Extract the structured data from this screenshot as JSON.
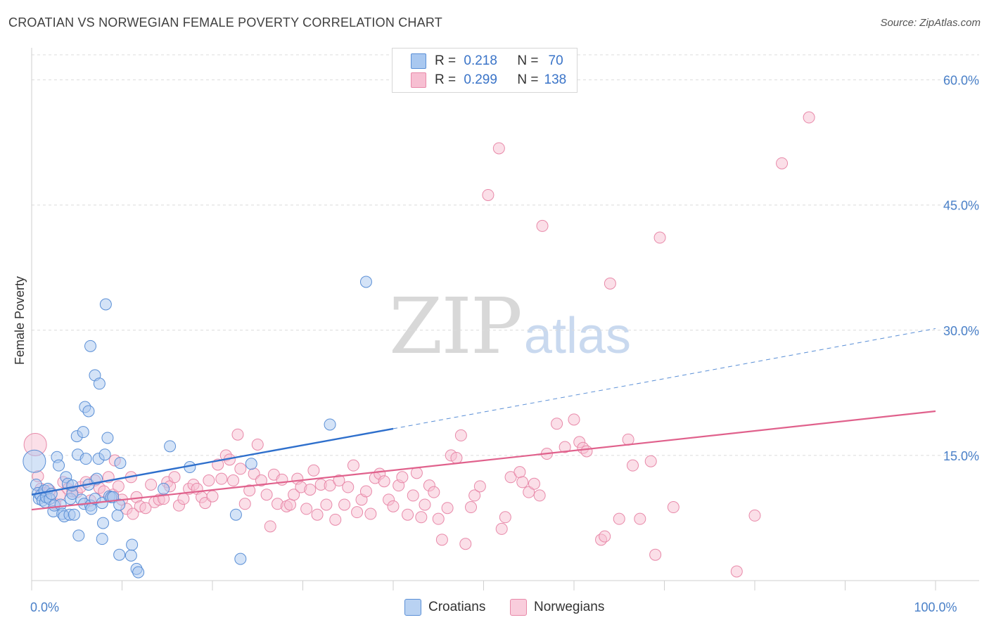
{
  "title": "CROATIAN VS NORWEGIAN FEMALE POVERTY CORRELATION CHART",
  "source": "Source: ZipAtlas.com",
  "watermark": {
    "zip": "ZIP",
    "atlas": "atlas"
  },
  "legend": {
    "rows": [
      {
        "r_label": "R =",
        "r_value": "0.218",
        "n_label": "N =",
        "n_value": "70"
      },
      {
        "r_label": "R =",
        "r_value": "0.299",
        "n_label": "N =",
        "n_value": "138"
      }
    ]
  },
  "bottom_legend": {
    "croatians": "Croatians",
    "norwegians": "Norwegians"
  },
  "colors": {
    "blue_fill": "#a9c8f0",
    "blue_stroke": "#5a8fd6",
    "blue_line": "#2e6fcc",
    "pink_fill": "#f7bfd2",
    "pink_stroke": "#e889a9",
    "pink_line": "#e0618c",
    "grid": "#dcdcdc",
    "tick_label": "#4a80c8"
  },
  "chart_data": {
    "type": "scatter",
    "title": "CROATIAN VS NORWEGIAN FEMALE POVERTY CORRELATION CHART",
    "xlabel": "",
    "ylabel": "Female Poverty",
    "xlim": [
      0,
      100
    ],
    "ylim": [
      0,
      63
    ],
    "x_ticks": [
      {
        "value": 0,
        "label": "0.0%"
      },
      {
        "value": 100,
        "label": "100.0%"
      }
    ],
    "y_ticks": [
      {
        "value": 15,
        "label": "15.0%"
      },
      {
        "value": 30,
        "label": "30.0%"
      },
      {
        "value": 45,
        "label": "45.0%"
      },
      {
        "value": 60,
        "label": "60.0%"
      }
    ],
    "series": [
      {
        "name": "Croatians",
        "r": 0.218,
        "n": 70,
        "trend": {
          "x0": 0,
          "y0": 10.3,
          "x1": 40,
          "y1": 18.2,
          "dashed_to_x": 100,
          "dashed_to_y": 30.2
        },
        "points": [
          [
            0.3,
            14.3
          ],
          [
            0.5,
            11.5
          ],
          [
            0.7,
            10.5
          ],
          [
            0.8,
            9.8
          ],
          [
            1.0,
            10.2
          ],
          [
            1.2,
            9.6
          ],
          [
            1.4,
            10.8
          ],
          [
            1.5,
            9.4
          ],
          [
            1.6,
            10.0
          ],
          [
            1.8,
            11.0
          ],
          [
            2.0,
            9.8
          ],
          [
            2.2,
            10.4
          ],
          [
            2.4,
            8.3
          ],
          [
            2.5,
            9.0
          ],
          [
            2.8,
            14.8
          ],
          [
            3.0,
            13.8
          ],
          [
            3.2,
            9.1
          ],
          [
            3.4,
            8.0
          ],
          [
            3.6,
            7.7
          ],
          [
            3.8,
            12.4
          ],
          [
            4.0,
            11.6
          ],
          [
            4.2,
            7.9
          ],
          [
            4.3,
            9.8
          ],
          [
            4.5,
            10.4
          ],
          [
            4.7,
            7.9
          ],
          [
            4.5,
            11.4
          ],
          [
            5.0,
            17.3
          ],
          [
            5.1,
            15.1
          ],
          [
            5.2,
            5.4
          ],
          [
            5.5,
            9.7
          ],
          [
            5.7,
            17.8
          ],
          [
            5.8,
            9.2
          ],
          [
            6.0,
            14.6
          ],
          [
            6.3,
            11.5
          ],
          [
            6.5,
            9.0
          ],
          [
            6.6,
            8.6
          ],
          [
            5.9,
            20.8
          ],
          [
            6.3,
            20.3
          ],
          [
            6.5,
            28.1
          ],
          [
            7.0,
            24.6
          ],
          [
            7.0,
            9.8
          ],
          [
            7.2,
            12.2
          ],
          [
            7.4,
            14.6
          ],
          [
            7.5,
            23.6
          ],
          [
            7.8,
            9.3
          ],
          [
            7.9,
            6.9
          ],
          [
            7.8,
            5.0
          ],
          [
            8.1,
            15.1
          ],
          [
            8.2,
            33.1
          ],
          [
            8.4,
            17.1
          ],
          [
            8.6,
            10.1
          ],
          [
            8.8,
            10.0
          ],
          [
            9.0,
            10.0
          ],
          [
            9.5,
            7.8
          ],
          [
            9.7,
            9.1
          ],
          [
            9.7,
            3.1
          ],
          [
            9.8,
            14.1
          ],
          [
            11.1,
            4.3
          ],
          [
            11.0,
            3.0
          ],
          [
            11.6,
            1.4
          ],
          [
            11.8,
            1.0
          ],
          [
            14.6,
            11.0
          ],
          [
            15.3,
            16.1
          ],
          [
            17.5,
            13.6
          ],
          [
            22.6,
            7.9
          ],
          [
            23.1,
            2.6
          ],
          [
            24.3,
            14.0
          ],
          [
            33.0,
            18.7
          ],
          [
            37.0,
            35.8
          ]
        ]
      },
      {
        "name": "Norwegians",
        "r": 0.299,
        "n": 138,
        "trend": {
          "x0": 0,
          "y0": 8.5,
          "x1": 100,
          "y1": 20.3
        },
        "points": [
          [
            0.4,
            16.3
          ],
          [
            0.7,
            12.5
          ],
          [
            1.0,
            11.0
          ],
          [
            1.5,
            10.5
          ],
          [
            2.0,
            10.8
          ],
          [
            2.6,
            9.2
          ],
          [
            3.1,
            10.2
          ],
          [
            3.5,
            11.8
          ],
          [
            4.0,
            11.0
          ],
          [
            4.5,
            10.7
          ],
          [
            5.0,
            10.6
          ],
          [
            5.4,
            11.2
          ],
          [
            6.0,
            11.8
          ],
          [
            6.5,
            9.6
          ],
          [
            7.0,
            12.0
          ],
          [
            7.5,
            11.1
          ],
          [
            8.0,
            10.7
          ],
          [
            8.5,
            12.4
          ],
          [
            9.0,
            10.3
          ],
          [
            9.2,
            14.4
          ],
          [
            9.6,
            11.3
          ],
          [
            10.0,
            9.7
          ],
          [
            10.5,
            8.6
          ],
          [
            11.0,
            12.4
          ],
          [
            11.2,
            8.0
          ],
          [
            11.6,
            10.0
          ],
          [
            12.0,
            8.9
          ],
          [
            12.6,
            8.7
          ],
          [
            13.2,
            11.5
          ],
          [
            13.6,
            9.4
          ],
          [
            14.1,
            9.7
          ],
          [
            14.6,
            9.8
          ],
          [
            15.0,
            11.8
          ],
          [
            15.3,
            11.3
          ],
          [
            15.8,
            12.4
          ],
          [
            16.3,
            9.0
          ],
          [
            16.8,
            9.8
          ],
          [
            17.4,
            11.0
          ],
          [
            17.9,
            11.5
          ],
          [
            18.3,
            11.0
          ],
          [
            18.8,
            10.0
          ],
          [
            19.2,
            9.3
          ],
          [
            19.6,
            12.0
          ],
          [
            20.0,
            10.1
          ],
          [
            20.6,
            13.9
          ],
          [
            21.0,
            12.2
          ],
          [
            21.5,
            15.0
          ],
          [
            21.9,
            14.5
          ],
          [
            22.3,
            12.0
          ],
          [
            22.8,
            17.5
          ],
          [
            23.1,
            13.4
          ],
          [
            23.6,
            9.2
          ],
          [
            24.1,
            10.8
          ],
          [
            24.6,
            12.8
          ],
          [
            25.0,
            16.3
          ],
          [
            25.4,
            12.0
          ],
          [
            26.0,
            10.3
          ],
          [
            26.4,
            6.5
          ],
          [
            26.8,
            12.7
          ],
          [
            27.2,
            9.2
          ],
          [
            27.7,
            12.1
          ],
          [
            28.2,
            8.9
          ],
          [
            28.6,
            9.1
          ],
          [
            29.0,
            10.3
          ],
          [
            29.4,
            12.2
          ],
          [
            29.8,
            11.2
          ],
          [
            30.4,
            8.6
          ],
          [
            30.8,
            10.9
          ],
          [
            31.2,
            13.2
          ],
          [
            31.6,
            7.9
          ],
          [
            32.0,
            11.5
          ],
          [
            32.6,
            9.1
          ],
          [
            33.0,
            11.4
          ],
          [
            33.6,
            7.3
          ],
          [
            34.0,
            12.0
          ],
          [
            34.6,
            9.1
          ],
          [
            35.0,
            11.2
          ],
          [
            35.6,
            13.8
          ],
          [
            36.0,
            8.2
          ],
          [
            36.5,
            9.7
          ],
          [
            37.0,
            10.7
          ],
          [
            37.5,
            8.0
          ],
          [
            38.0,
            12.3
          ],
          [
            38.5,
            12.8
          ],
          [
            39.0,
            11.9
          ],
          [
            39.5,
            9.7
          ],
          [
            40.0,
            8.9
          ],
          [
            40.6,
            11.4
          ],
          [
            41.0,
            12.4
          ],
          [
            41.6,
            7.9
          ],
          [
            42.2,
            10.2
          ],
          [
            42.6,
            12.9
          ],
          [
            43.1,
            7.6
          ],
          [
            43.5,
            9.1
          ],
          [
            44.0,
            11.4
          ],
          [
            44.5,
            10.6
          ],
          [
            45.0,
            7.4
          ],
          [
            45.4,
            4.9
          ],
          [
            46.0,
            8.7
          ],
          [
            46.4,
            15.0
          ],
          [
            47.0,
            14.7
          ],
          [
            47.5,
            17.4
          ],
          [
            48.0,
            4.4
          ],
          [
            48.6,
            8.8
          ],
          [
            49.0,
            10.2
          ],
          [
            49.6,
            11.3
          ],
          [
            50.5,
            46.2
          ],
          [
            51.7,
            51.8
          ],
          [
            52.0,
            6.2
          ],
          [
            52.4,
            7.6
          ],
          [
            53.0,
            12.4
          ],
          [
            54.0,
            13.0
          ],
          [
            54.3,
            11.8
          ],
          [
            55.0,
            10.6
          ],
          [
            55.6,
            11.6
          ],
          [
            56.2,
            10.2
          ],
          [
            56.5,
            42.5
          ],
          [
            57.0,
            15.2
          ],
          [
            58.1,
            18.8
          ],
          [
            59.0,
            16.0
          ],
          [
            60.0,
            19.3
          ],
          [
            60.6,
            16.6
          ],
          [
            61.0,
            15.9
          ],
          [
            61.4,
            15.5
          ],
          [
            63.0,
            4.9
          ],
          [
            63.4,
            5.3
          ],
          [
            64.0,
            35.6
          ],
          [
            65.0,
            7.4
          ],
          [
            66.0,
            16.9
          ],
          [
            66.5,
            13.8
          ],
          [
            67.3,
            7.4
          ],
          [
            68.5,
            14.3
          ],
          [
            69.0,
            3.1
          ],
          [
            69.5,
            41.1
          ],
          [
            71.0,
            8.8
          ],
          [
            78.0,
            1.1
          ],
          [
            80.0,
            7.8
          ],
          [
            83.0,
            50.0
          ],
          [
            86.0,
            55.5
          ]
        ]
      }
    ]
  },
  "axis": {
    "ylabel": "Female Poverty"
  }
}
